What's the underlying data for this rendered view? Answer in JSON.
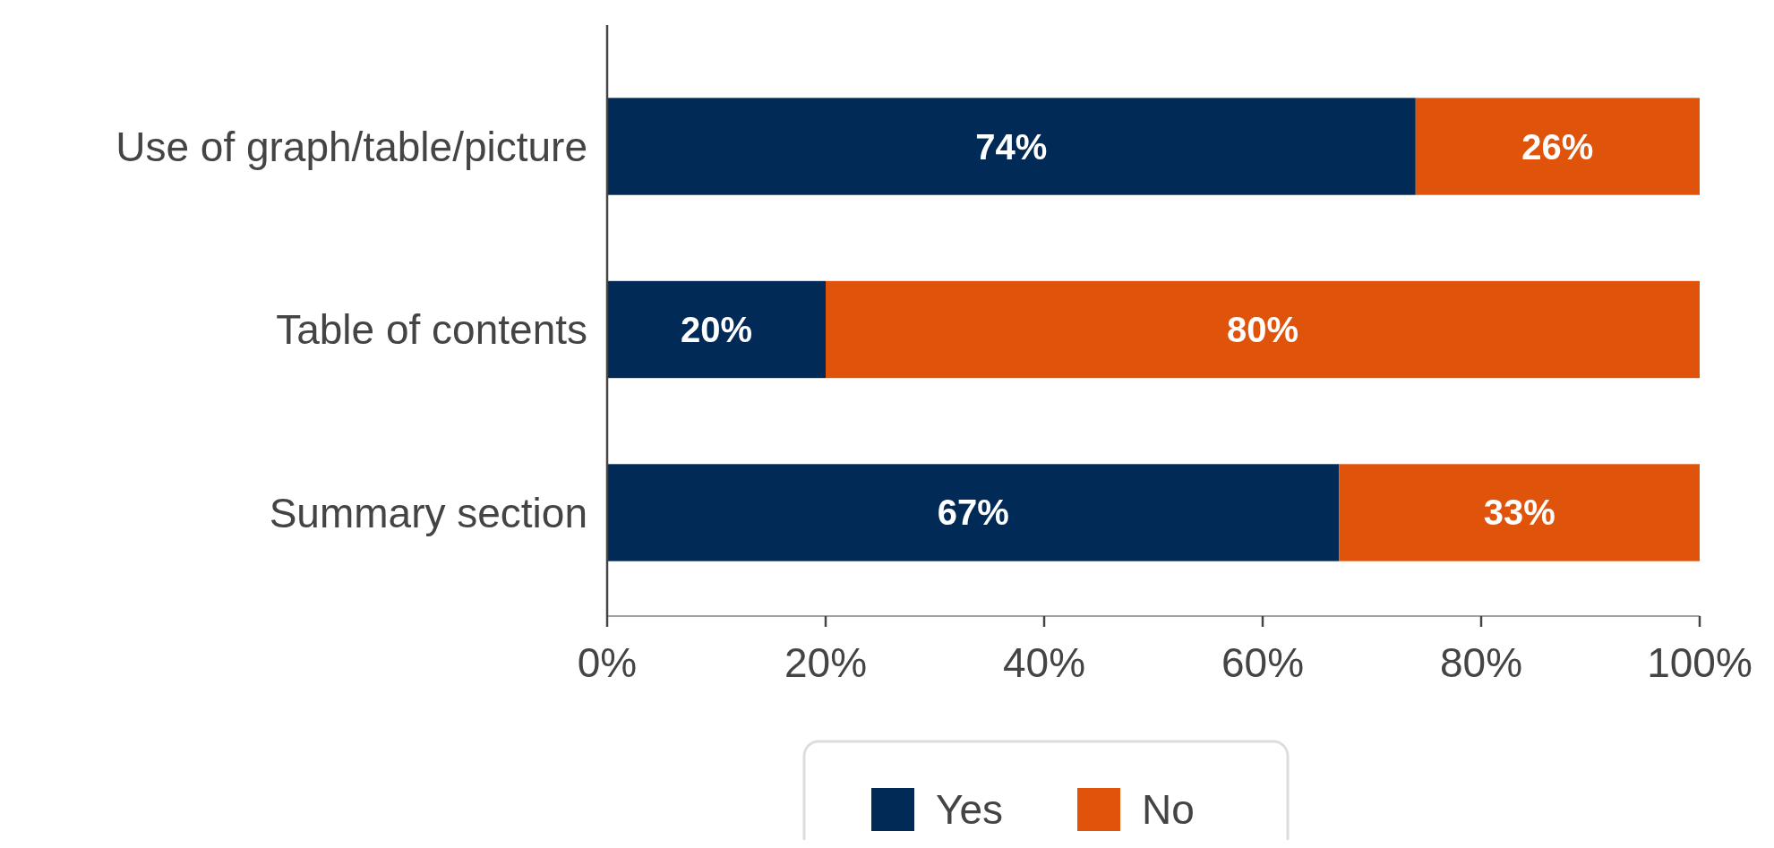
{
  "chart_data": {
    "type": "bar",
    "orientation": "horizontal",
    "stacked": true,
    "categories": [
      "Use of graph/table/picture",
      "Table of contents",
      "Summary section"
    ],
    "series": [
      {
        "name": "Yes",
        "color": "#012a57",
        "values": [
          74,
          20,
          67
        ],
        "value_labels": [
          "74%",
          "20%",
          "67%"
        ]
      },
      {
        "name": "No",
        "color": "#e0530a",
        "values": [
          26,
          80,
          33
        ],
        "value_labels": [
          "26%",
          "80%",
          "33%"
        ]
      }
    ],
    "xlim": [
      0,
      100
    ],
    "xticks": [
      {
        "value": 0,
        "label": "0%"
      },
      {
        "value": 20,
        "label": "20%"
      },
      {
        "value": 40,
        "label": "40%"
      },
      {
        "value": 60,
        "label": "60%"
      },
      {
        "value": 80,
        "label": "80%"
      },
      {
        "value": 100,
        "label": "100%"
      }
    ],
    "grid": false,
    "legend": "bottom"
  }
}
